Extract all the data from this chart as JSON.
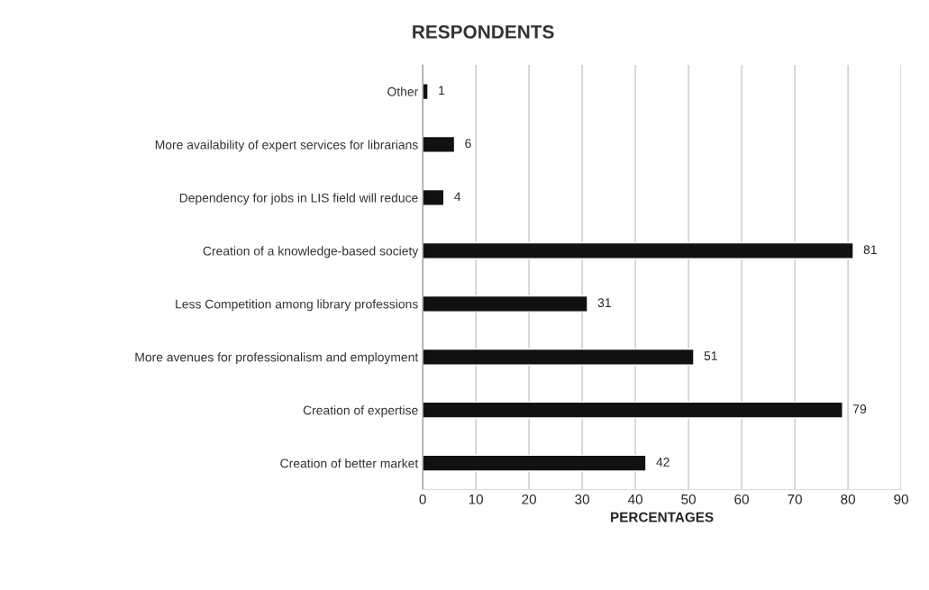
{
  "chart_data": {
    "type": "bar",
    "orientation": "horizontal",
    "title": "RESPONDENTS",
    "xlabel": "PERCENTAGES",
    "categories": [
      "Other",
      "More availability of expert services for librarians",
      "Dependency for jobs in LIS field will reduce",
      "Creation of a knowledge-based society",
      "Less Competition among library professions",
      "More avenues for professionalism and employment",
      "Creation of expertise",
      "Creation of better market"
    ],
    "values": [
      1,
      6,
      4,
      81,
      31,
      51,
      79,
      42
    ],
    "color": "#111111",
    "xlim": [
      0,
      90
    ],
    "xticks": [
      0,
      10,
      20,
      30,
      40,
      50,
      60,
      70,
      80,
      90
    ],
    "grid": "x",
    "data_labels": true,
    "legend": false
  }
}
